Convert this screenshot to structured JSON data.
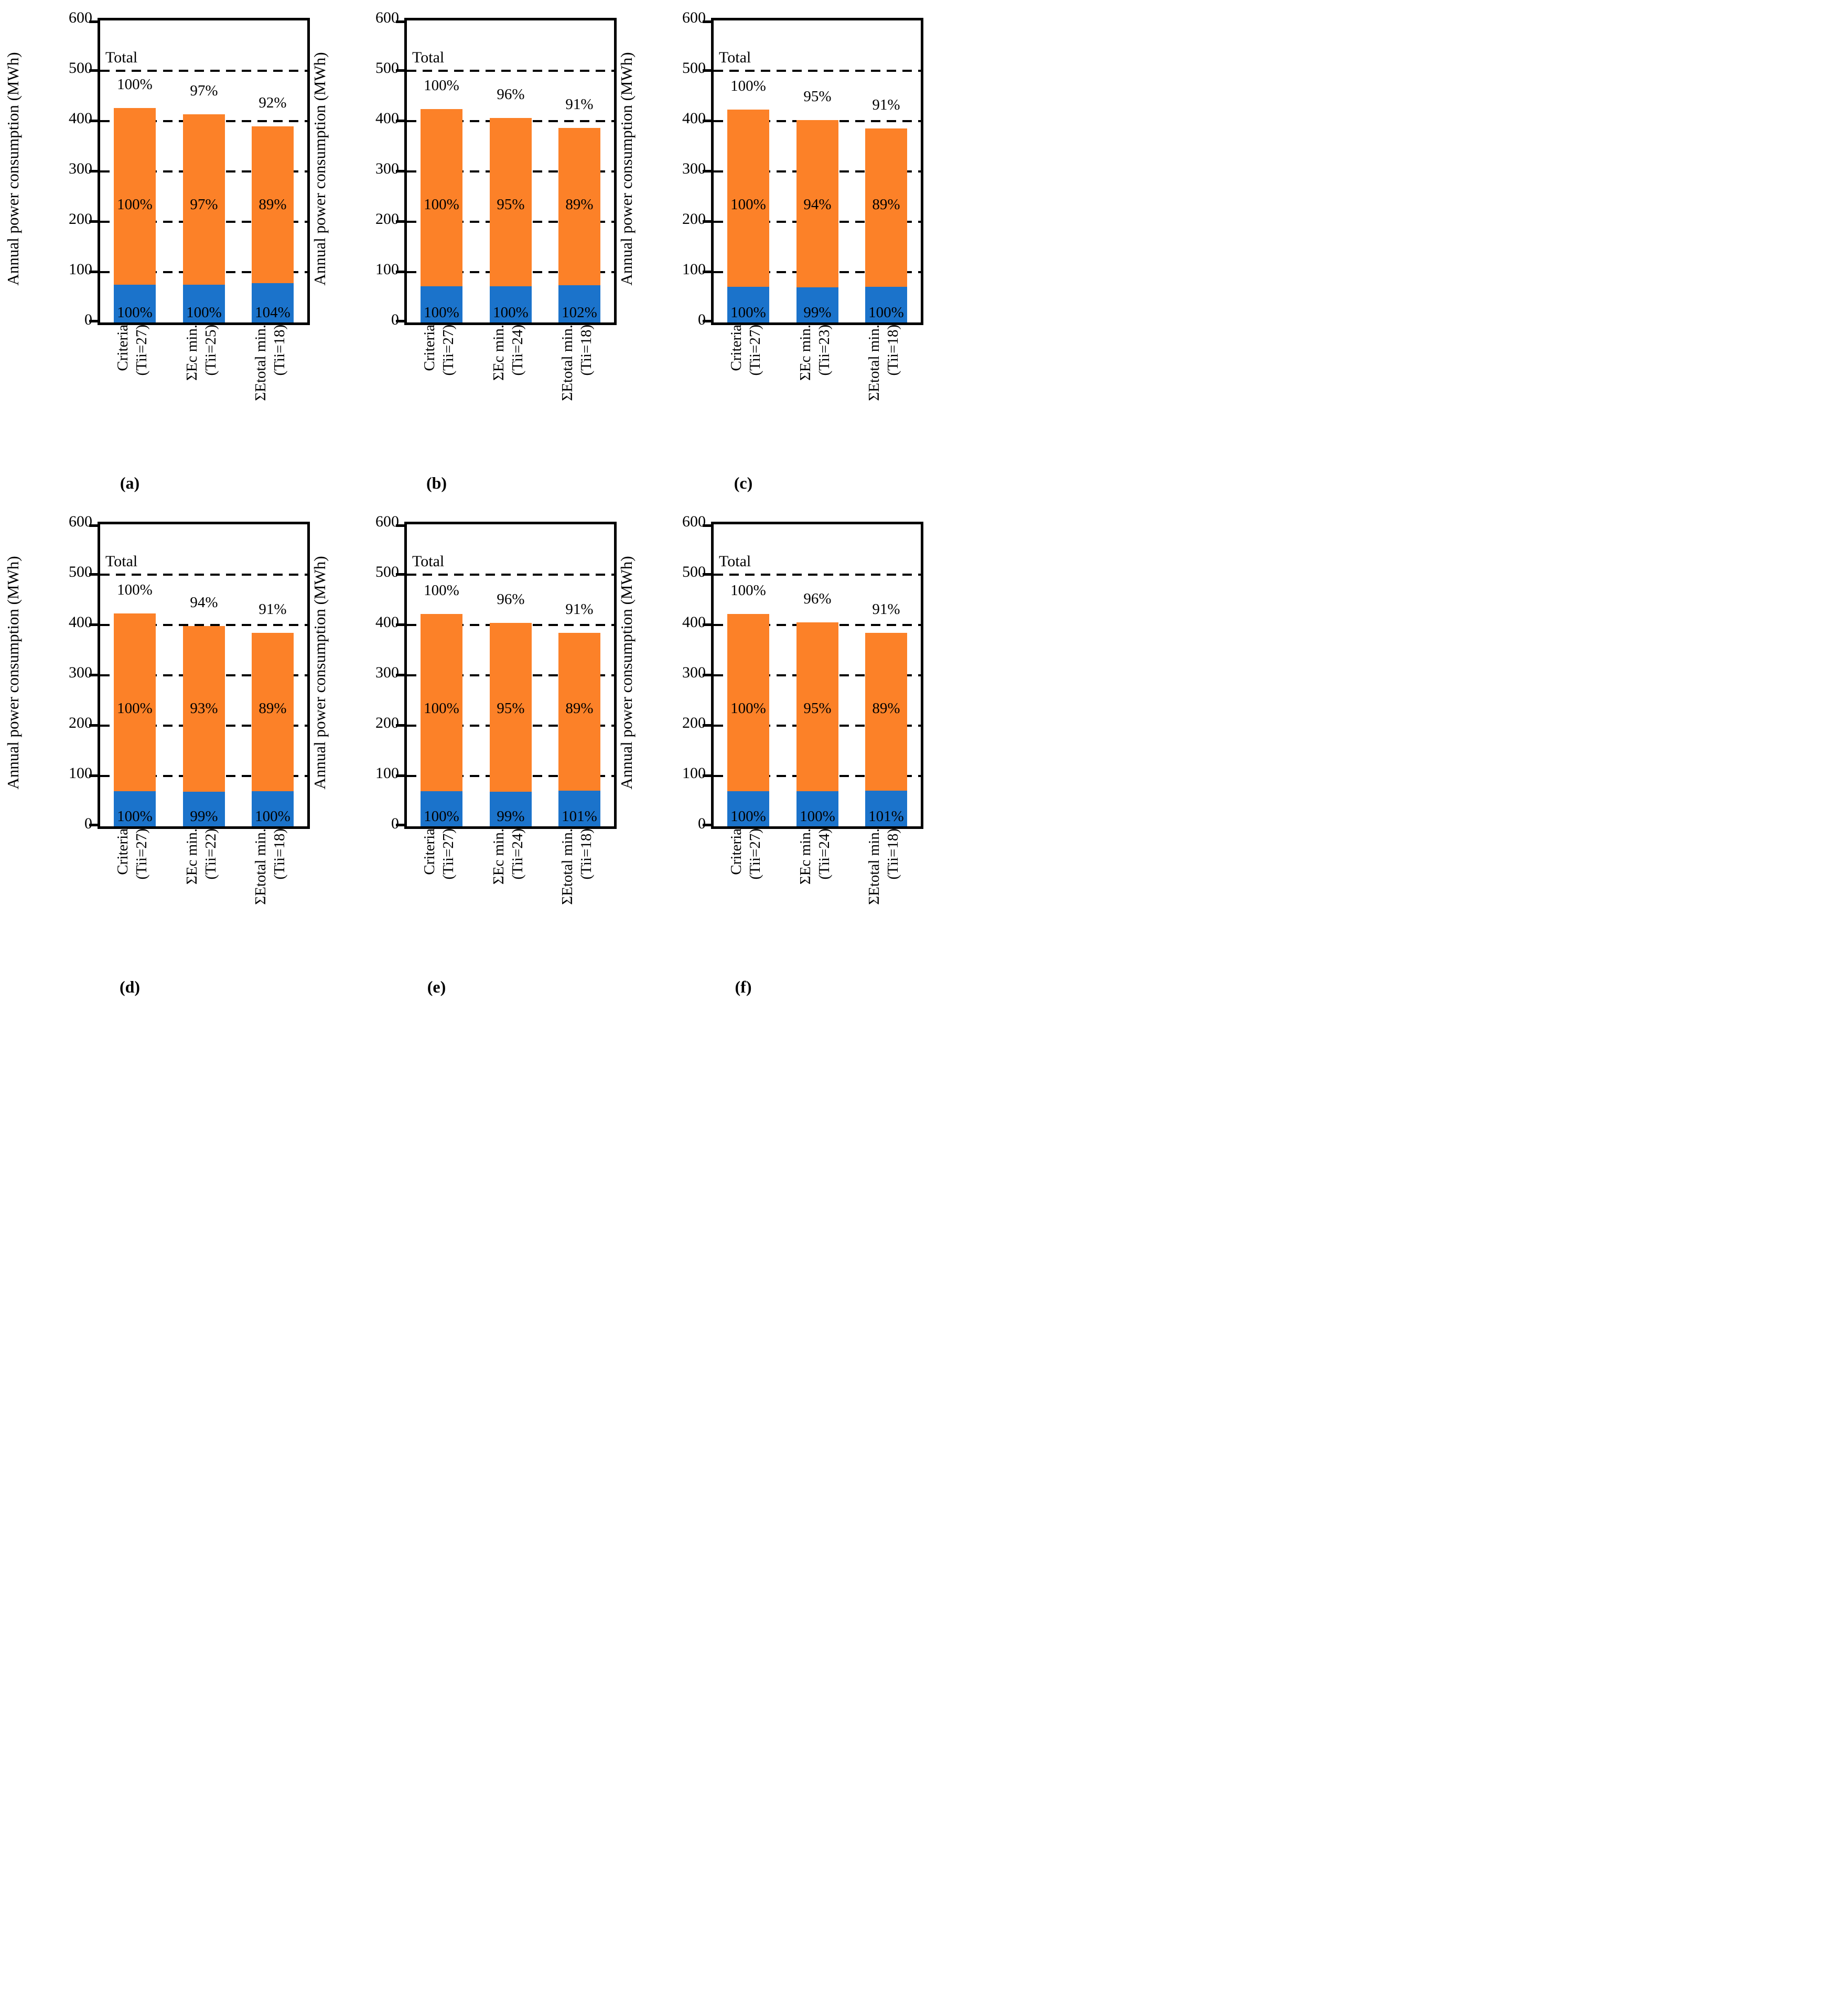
{
  "colors": {
    "blue": "#1B73CB",
    "orange": "#FC8128",
    "axis": "#000000"
  },
  "y_axis": {
    "title": "Annual power consumption (MWh)",
    "ticks": [
      0,
      100,
      200,
      300,
      400,
      500,
      600
    ],
    "max": 600
  },
  "annotation": {
    "label": "Total",
    "value": 500
  },
  "chart_data": [
    {
      "id": "a",
      "caption": "(a)",
      "type": "bar",
      "stacked": true,
      "ylabel": "Annual power consumption (MWh)",
      "ylim": [
        0,
        600
      ],
      "grid": "dashed-horizontal",
      "categories": [
        {
          "label": "Criteria",
          "sub": "(Tii=27)"
        },
        {
          "label": "ΣEc min.",
          "sub": "(Tii=25)"
        },
        {
          "label": "ΣEtotal min.",
          "sub": "(Tii=18)"
        }
      ],
      "series": [
        {
          "name": "blue",
          "values": [
            75,
            75,
            78
          ]
        },
        {
          "name": "orange",
          "values": [
            351,
            339,
            312
          ]
        }
      ],
      "labels": {
        "total": [
          "100%",
          "97%",
          "92%"
        ],
        "orange": [
          "100%",
          "97%",
          "89%"
        ],
        "blue": [
          "100%",
          "100%",
          "104%"
        ]
      }
    },
    {
      "id": "b",
      "caption": "(b)",
      "type": "bar",
      "stacked": true,
      "ylabel": "Annual power consumption (MWh)",
      "ylim": [
        0,
        600
      ],
      "grid": "dashed-horizontal",
      "categories": [
        {
          "label": "Criteria",
          "sub": "(Tii=27)"
        },
        {
          "label": "ΣEc min.",
          "sub": "(Tii=24)"
        },
        {
          "label": "ΣEtotal min.",
          "sub": "(Tii=18)"
        }
      ],
      "series": [
        {
          "name": "blue",
          "values": [
            72,
            72,
            74
          ]
        },
        {
          "name": "orange",
          "values": [
            352,
            334,
            312
          ]
        }
      ],
      "labels": {
        "total": [
          "100%",
          "96%",
          "91%"
        ],
        "orange": [
          "100%",
          "95%",
          "89%"
        ],
        "blue": [
          "100%",
          "100%",
          "102%"
        ]
      }
    },
    {
      "id": "c",
      "caption": "(c)",
      "type": "bar",
      "stacked": true,
      "ylabel": "Annual power consumption (MWh)",
      "ylim": [
        0,
        600
      ],
      "grid": "dashed-horizontal",
      "categories": [
        {
          "label": "Criteria",
          "sub": "(Tii=27)"
        },
        {
          "label": "ΣEc min.",
          "sub": "(Tii=23)"
        },
        {
          "label": "ΣEtotal min.",
          "sub": "(Tii=18)"
        }
      ],
      "series": [
        {
          "name": "blue",
          "values": [
            71,
            70,
            71
          ]
        },
        {
          "name": "orange",
          "values": [
            352,
            332,
            314
          ]
        }
      ],
      "labels": {
        "total": [
          "100%",
          "95%",
          "91%"
        ],
        "orange": [
          "100%",
          "94%",
          "89%"
        ],
        "blue": [
          "100%",
          "99%",
          "100%"
        ]
      }
    },
    {
      "id": "d",
      "caption": "(d)",
      "type": "bar",
      "stacked": true,
      "ylabel": "Annual power consumption (MWh)",
      "ylim": [
        0,
        600
      ],
      "grid": "dashed-horizontal",
      "categories": [
        {
          "label": "Criteria",
          "sub": "(Tii=27)"
        },
        {
          "label": "ΣEc min.",
          "sub": "(Tii=22)"
        },
        {
          "label": "ΣEtotal min.",
          "sub": "(Tii=18)"
        }
      ],
      "series": [
        {
          "name": "blue",
          "values": [
            70,
            69,
            70
          ]
        },
        {
          "name": "orange",
          "values": [
            353,
            329,
            314
          ]
        }
      ],
      "labels": {
        "total": [
          "100%",
          "94%",
          "91%"
        ],
        "orange": [
          "100%",
          "93%",
          "89%"
        ],
        "blue": [
          "100%",
          "99%",
          "100%"
        ]
      }
    },
    {
      "id": "e",
      "caption": "(e)",
      "type": "bar",
      "stacked": true,
      "ylabel": "Annual power consumption (MWh)",
      "ylim": [
        0,
        600
      ],
      "grid": "dashed-horizontal",
      "categories": [
        {
          "label": "Criteria",
          "sub": "(Tii=27)"
        },
        {
          "label": "ΣEc min.",
          "sub": "(Tii=24)"
        },
        {
          "label": "ΣEtotal min.",
          "sub": "(Tii=18)"
        }
      ],
      "series": [
        {
          "name": "blue",
          "values": [
            70,
            69,
            71
          ]
        },
        {
          "name": "orange",
          "values": [
            352,
            335,
            313
          ]
        }
      ],
      "labels": {
        "total": [
          "100%",
          "96%",
          "91%"
        ],
        "orange": [
          "100%",
          "95%",
          "89%"
        ],
        "blue": [
          "100%",
          "99%",
          "101%"
        ]
      }
    },
    {
      "id": "f",
      "caption": "(f)",
      "type": "bar",
      "stacked": true,
      "ylabel": "Annual power consumption (MWh)",
      "ylim": [
        0,
        600
      ],
      "grid": "dashed-horizontal",
      "categories": [
        {
          "label": "Criteria",
          "sub": "(Tii=27)"
        },
        {
          "label": "ΣEc min.",
          "sub": "(Tii=24)"
        },
        {
          "label": "ΣEtotal min.",
          "sub": "(Tii=18)"
        }
      ],
      "series": [
        {
          "name": "blue",
          "values": [
            70,
            70,
            71
          ]
        },
        {
          "name": "orange",
          "values": [
            352,
            335,
            313
          ]
        }
      ],
      "labels": {
        "total": [
          "100%",
          "96%",
          "91%"
        ],
        "orange": [
          "100%",
          "95%",
          "89%"
        ],
        "blue": [
          "100%",
          "100%",
          "101%"
        ]
      }
    }
  ]
}
